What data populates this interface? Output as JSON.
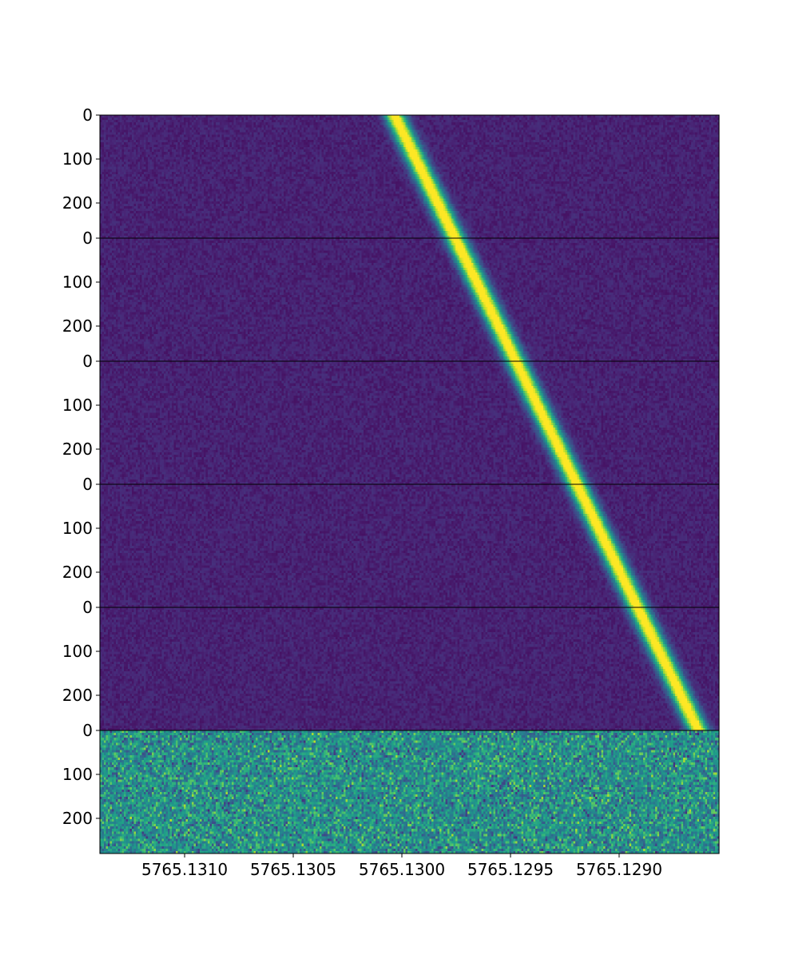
{
  "chart_data": {
    "type": "heatmap",
    "title": "",
    "xlabel": "",
    "ylabel": "",
    "colormap": "viridis",
    "x_axis": {
      "direction": "decreasing",
      "range": [
        5765.13139,
        5765.12854
      ],
      "ticks": [
        {
          "value": 5765.131,
          "label": "5765.1310"
        },
        {
          "value": 5765.1305,
          "label": "5765.1305"
        },
        {
          "value": 5765.13,
          "label": "5765.1300"
        },
        {
          "value": 5765.1295,
          "label": "5765.1295"
        },
        {
          "value": 5765.129,
          "label": "5765.1290"
        }
      ]
    },
    "panels": [
      {
        "id": "panel-1",
        "ylim": [
          0,
          280
        ],
        "y_ticks": [
          {
            "value": 0,
            "label": "0"
          },
          {
            "value": 100,
            "label": "100"
          },
          {
            "value": 200,
            "label": "200"
          }
        ],
        "noise_level": 0.14,
        "line": {
          "x_start": 5765.130035,
          "x_end": 5765.129755,
          "intensity": 1.0,
          "width": 4.75e-05
        }
      },
      {
        "id": "panel-2",
        "ylim": [
          0,
          280
        ],
        "y_ticks": [
          {
            "value": 0,
            "label": "0"
          },
          {
            "value": 100,
            "label": "100"
          },
          {
            "value": 200,
            "label": "200"
          }
        ],
        "noise_level": 0.14,
        "line": {
          "x_start": 5765.129755,
          "x_end": 5765.129475,
          "intensity": 1.0,
          "width": 4.75e-05
        }
      },
      {
        "id": "panel-3",
        "ylim": [
          0,
          280
        ],
        "y_ticks": [
          {
            "value": 0,
            "label": "0"
          },
          {
            "value": 100,
            "label": "100"
          },
          {
            "value": 200,
            "label": "200"
          }
        ],
        "noise_level": 0.14,
        "line": {
          "x_start": 5765.129475,
          "x_end": 5765.129195,
          "intensity": 1.0,
          "width": 4.75e-05
        }
      },
      {
        "id": "panel-4",
        "ylim": [
          0,
          280
        ],
        "y_ticks": [
          {
            "value": 0,
            "label": "0"
          },
          {
            "value": 100,
            "label": "100"
          },
          {
            "value": 200,
            "label": "200"
          }
        ],
        "noise_level": 0.14,
        "line": {
          "x_start": 5765.129195,
          "x_end": 5765.128915,
          "intensity": 1.0,
          "width": 4.75e-05
        }
      },
      {
        "id": "panel-5",
        "ylim": [
          0,
          280
        ],
        "y_ticks": [
          {
            "value": 0,
            "label": "0"
          },
          {
            "value": 100,
            "label": "100"
          },
          {
            "value": 200,
            "label": "200"
          }
        ],
        "noise_level": 0.14,
        "line": {
          "x_start": 5765.128915,
          "x_end": 5765.128635,
          "intensity": 1.0,
          "width": 4.75e-05
        }
      },
      {
        "id": "panel-6",
        "ylim": [
          0,
          280
        ],
        "y_ticks": [
          {
            "value": 0,
            "label": "0"
          },
          {
            "value": 100,
            "label": "100"
          },
          {
            "value": 200,
            "label": "200"
          }
        ],
        "noise_level": 0.5,
        "noise_spread": 0.28,
        "line": null
      }
    ]
  }
}
